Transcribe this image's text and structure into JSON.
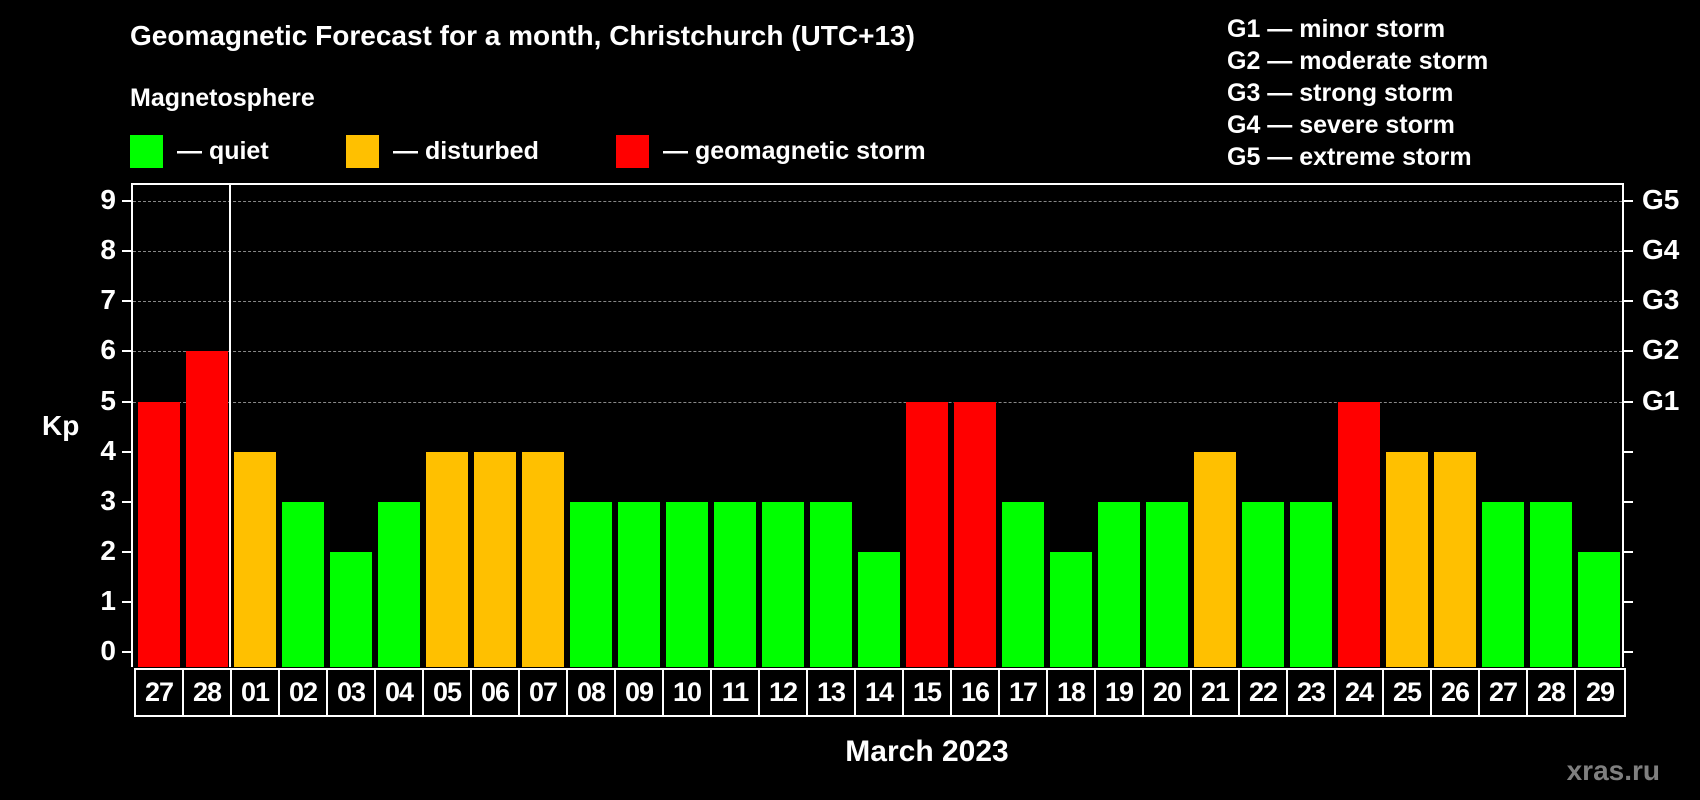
{
  "header": {
    "title": "Geomagnetic Forecast for a month, Christchurch (UTC+13)",
    "subtitle": "Magnetosphere"
  },
  "legend": [
    {
      "label": "— quiet",
      "color": "#00ff00"
    },
    {
      "label": "— disturbed",
      "color": "#ffc000"
    },
    {
      "label": "— geomagnetic storm",
      "color": "#ff0000"
    }
  ],
  "g_scale": [
    "G1 — minor storm",
    "G2 — moderate storm",
    "G3 — strong storm",
    "G4 — severe storm",
    "G5 — extreme storm"
  ],
  "axes": {
    "y_label": "Kp",
    "x_label": "March 2023",
    "y_ticks": [
      "0",
      "1",
      "2",
      "3",
      "4",
      "5",
      "6",
      "7",
      "8",
      "9"
    ],
    "right_ticks": [
      {
        "kp": 5,
        "label": "G1"
      },
      {
        "kp": 6,
        "label": "G2"
      },
      {
        "kp": 7,
        "label": "G3"
      },
      {
        "kp": 8,
        "label": "G4"
      },
      {
        "kp": 9,
        "label": "G5"
      }
    ]
  },
  "watermark": "xras.ru",
  "chart_data": {
    "type": "bar",
    "title": "Geomagnetic Forecast for a month, Christchurch (UTC+13)",
    "xlabel": "March 2023",
    "ylabel": "Kp",
    "ylim": [
      0,
      9
    ],
    "grid": "dashed horizontal at Kp 5-9",
    "categories": [
      "27",
      "28",
      "01",
      "02",
      "03",
      "04",
      "05",
      "06",
      "07",
      "08",
      "09",
      "10",
      "11",
      "12",
      "13",
      "14",
      "15",
      "16",
      "17",
      "18",
      "19",
      "20",
      "21",
      "22",
      "23",
      "24",
      "25",
      "26",
      "27",
      "28",
      "29"
    ],
    "values": [
      5,
      6,
      4,
      3,
      2,
      3,
      4,
      4,
      4,
      3,
      3,
      3,
      3,
      3,
      3,
      2,
      5,
      5,
      3,
      2,
      3,
      3,
      4,
      3,
      3,
      5,
      4,
      4,
      3,
      3,
      2
    ],
    "status": [
      "storm",
      "storm",
      "disturbed",
      "quiet",
      "quiet",
      "quiet",
      "disturbed",
      "disturbed",
      "disturbed",
      "quiet",
      "quiet",
      "quiet",
      "quiet",
      "quiet",
      "quiet",
      "quiet",
      "storm",
      "storm",
      "quiet",
      "quiet",
      "quiet",
      "quiet",
      "disturbed",
      "quiet",
      "quiet",
      "storm",
      "disturbed",
      "disturbed",
      "quiet",
      "quiet",
      "quiet"
    ],
    "colors": {
      "quiet": "#00ff00",
      "disturbed": "#ffc000",
      "storm": "#ff0000"
    },
    "legend": [
      "quiet",
      "disturbed",
      "geomagnetic storm"
    ],
    "month_separator_after_index": 1
  }
}
